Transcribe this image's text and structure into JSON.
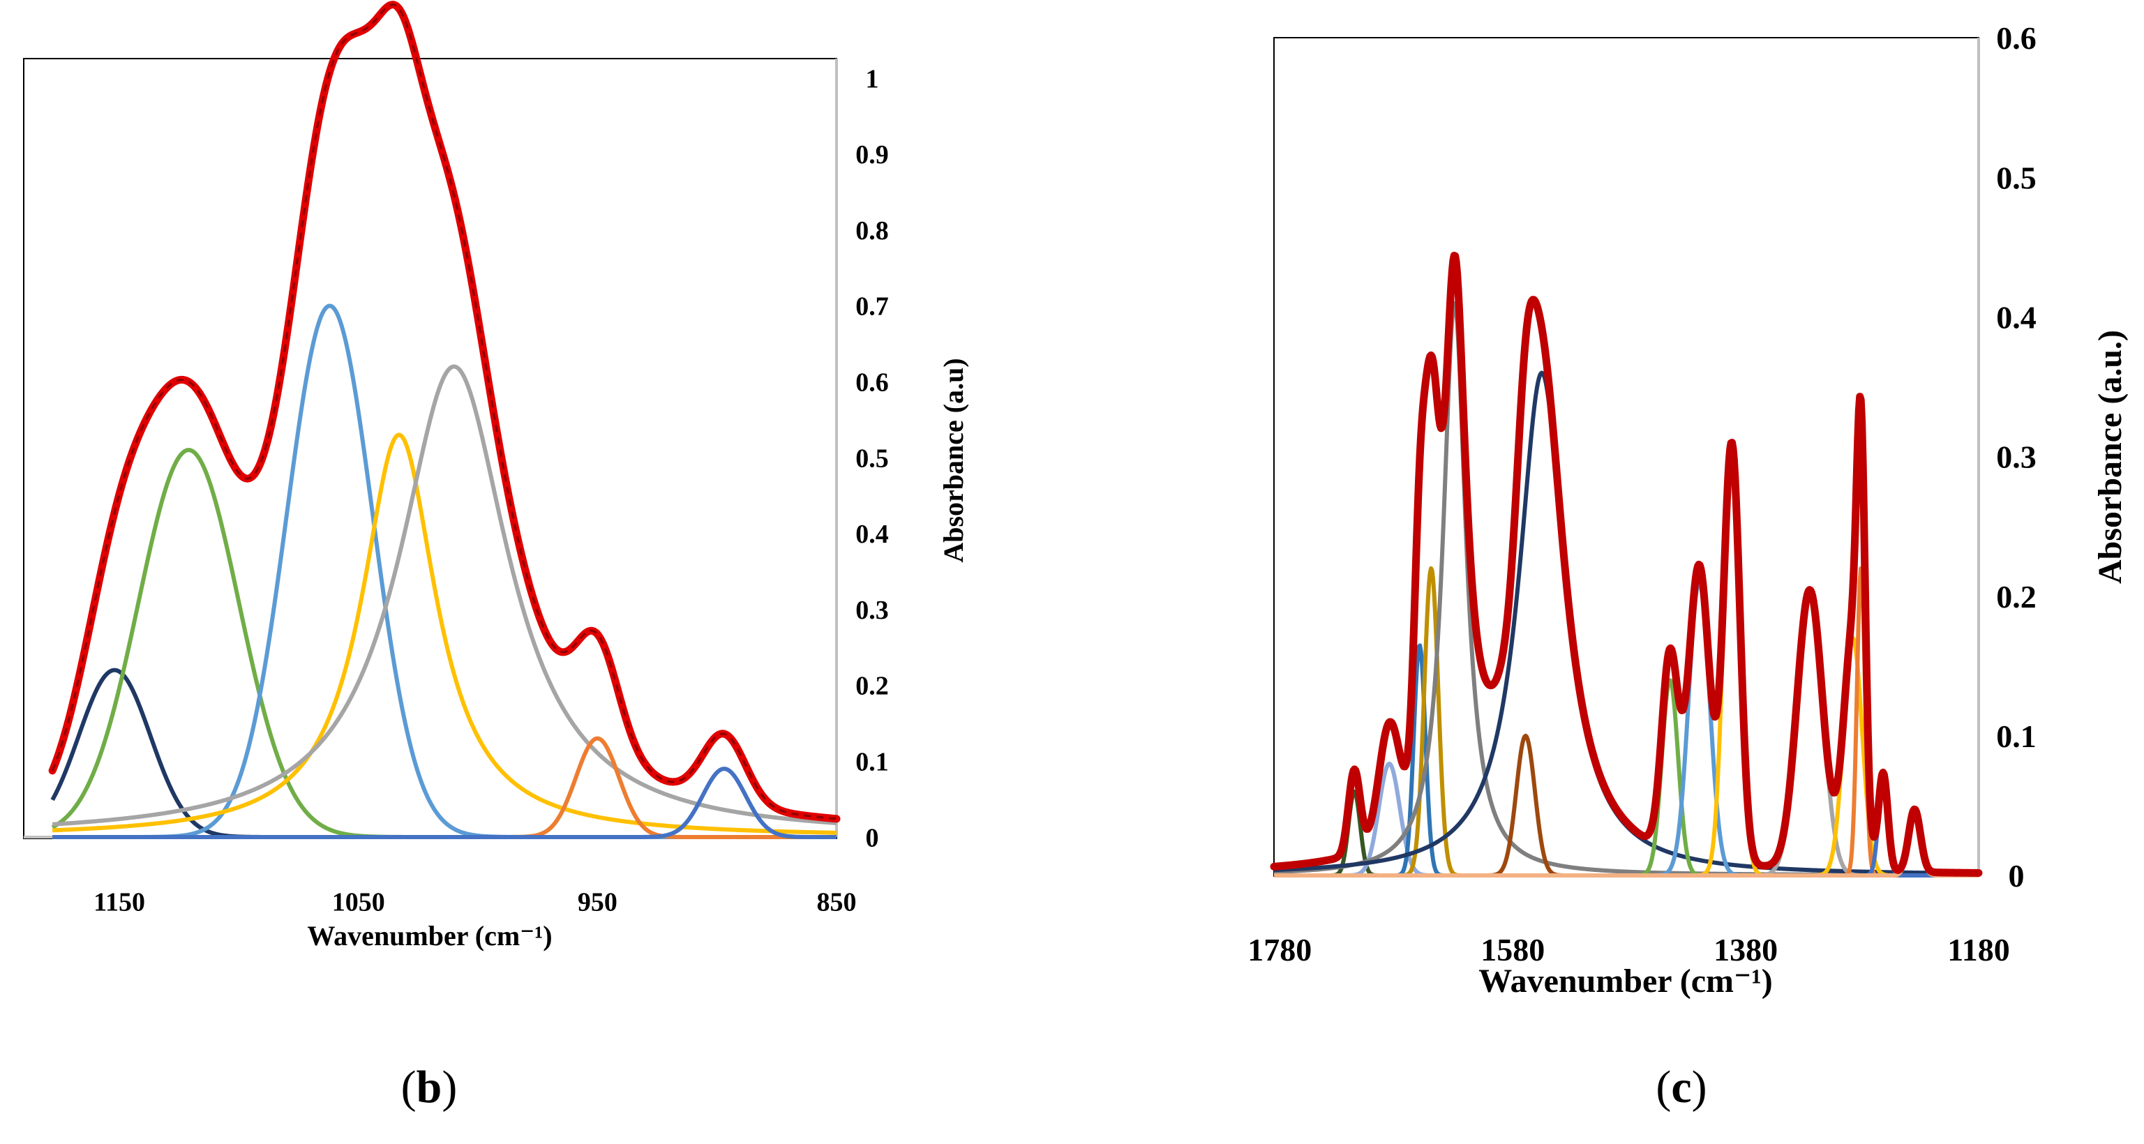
{
  "chart_data": [
    {
      "type": "line",
      "panel_label_open": "(",
      "panel_label_letter": "b",
      "panel_label_close": ")",
      "xlabel": "Wavenumber (cm⁻¹)",
      "ylabel": "Absorbance (a.u)",
      "xlim": [
        1190,
        850
      ],
      "ylim": [
        0,
        1
      ],
      "x_ticks": [
        1150,
        1050,
        950,
        850
      ],
      "x_tick_labels": [
        "1150",
        "1050",
        "950",
        "850"
      ],
      "y_ticks": [
        0,
        0.1,
        0.2,
        0.3,
        0.4,
        0.5,
        0.6,
        0.7,
        0.8,
        0.9,
        1
      ],
      "y_tick_labels": [
        "0",
        "0.1",
        "0.2",
        "0.3",
        "0.4",
        "0.5",
        "0.6",
        "0.7",
        "0.8",
        "0.9",
        "1"
      ],
      "y_axis_side": "right",
      "x_range_plot": [
        1178,
        850
      ],
      "series": [
        {
          "name": "band 1152 (navy)",
          "shape": "gaussian",
          "center": 1152,
          "height": 0.22,
          "width": 15,
          "color": "#1f3864"
        },
        {
          "name": "band 1121 (green)",
          "shape": "gaussian",
          "center": 1121,
          "height": 0.51,
          "width": 21,
          "color": "#70ad47"
        },
        {
          "name": "band 1062 (light blue)",
          "shape": "gaussian",
          "center": 1062,
          "height": 0.7,
          "width": 18,
          "color": "#5b9bd5"
        },
        {
          "name": "band 1033 (gold)",
          "shape": "lorentzian",
          "center": 1033,
          "height": 0.53,
          "width": 19,
          "color": "#ffc000"
        },
        {
          "name": "band 1010 (gray)",
          "shape": "lorentzian",
          "center": 1010,
          "height": 0.62,
          "width": 28,
          "color": "#a5a5a5"
        },
        {
          "name": "band 950 (orange)",
          "shape": "gaussian",
          "center": 950,
          "height": 0.13,
          "width": 9,
          "color": "#ed7d31"
        },
        {
          "name": "band 897 (blue)",
          "shape": "gaussian",
          "center": 897,
          "height": 0.09,
          "width": 9,
          "color": "#4472c4"
        },
        {
          "name": "sum (fitted envelope)",
          "shape": "sum",
          "color": "#e00000",
          "dashed": true
        }
      ]
    },
    {
      "type": "line",
      "panel_label_open": "(",
      "panel_label_letter": "c",
      "panel_label_close": ")",
      "xlabel": "Wavenumber (cm⁻¹)",
      "ylabel": "Absorbance (a.u.)",
      "xlim": [
        1785,
        1180
      ],
      "ylim": [
        0,
        0.6
      ],
      "x_ticks": [
        1780,
        1580,
        1380,
        1180
      ],
      "x_tick_labels": [
        "1780",
        "1580",
        "1380",
        "1180"
      ],
      "y_ticks": [
        0,
        0.1,
        0.2,
        0.3,
        0.4,
        0.5,
        0.6
      ],
      "y_tick_labels": [
        "0",
        "0.1",
        "0.2",
        "0.3",
        "0.4",
        "0.5",
        "0.6"
      ],
      "y_axis_side": "right",
      "x_range_plot": [
        1785,
        1180
      ],
      "series": [
        {
          "name": "band 1716 (dark green)",
          "shape": "gaussian",
          "center": 1716,
          "height": 0.06,
          "width": 5,
          "color": "#375623"
        },
        {
          "name": "band 1686 (periwinkle)",
          "shape": "gaussian",
          "center": 1686,
          "height": 0.08,
          "width": 9,
          "color": "#8faadc"
        },
        {
          "name": "band 1660 (steel blue)",
          "shape": "gaussian",
          "center": 1660,
          "height": 0.165,
          "width": 5,
          "color": "#2e75b6"
        },
        {
          "name": "band 1650 (olive gold)",
          "shape": "gaussian",
          "center": 1650,
          "height": 0.22,
          "width": 6,
          "color": "#bf8f00"
        },
        {
          "name": "band 1630 (dark gray)",
          "shape": "lorentzian",
          "center": 1630,
          "height": 0.41,
          "width": 12,
          "color": "#7f7f7f"
        },
        {
          "name": "band 1569 (brown)",
          "shape": "gaussian",
          "center": 1569,
          "height": 0.1,
          "width": 8,
          "color": "#9e480e"
        },
        {
          "name": "band 1555 (navy)",
          "shape": "lorentzian",
          "center": 1555,
          "height": 0.36,
          "width": 24,
          "color": "#203864"
        },
        {
          "name": "band 1445 (green)",
          "shape": "gaussian",
          "center": 1445,
          "height": 0.14,
          "width": 7,
          "color": "#70ad47"
        },
        {
          "name": "band 1420 (light blue)",
          "shape": "gaussian",
          "center": 1420,
          "height": 0.21,
          "width": 9,
          "color": "#5b9bd5"
        },
        {
          "name": "band 1392 (yellow)",
          "shape": "gaussian",
          "center": 1392,
          "height": 0.3,
          "width": 7,
          "color": "#ffc000"
        },
        {
          "name": "band 1325 (gray)",
          "shape": "gaussian",
          "center": 1325,
          "height": 0.2,
          "width": 11,
          "color": "#a5a5a5"
        },
        {
          "name": "band 1288 (yellow)",
          "shape": "gaussian",
          "center": 1288,
          "height": 0.17,
          "width": 8,
          "color": "#ffc000"
        },
        {
          "name": "band 1281 (orange)",
          "shape": "gaussian",
          "center": 1281,
          "height": 0.22,
          "width": 3.5,
          "color": "#ed7d31"
        },
        {
          "name": "band 1262 (blue)",
          "shape": "gaussian",
          "center": 1262,
          "height": 0.07,
          "width": 4,
          "color": "#4472c4"
        },
        {
          "name": "band 1235 (light orange)",
          "shape": "gaussian",
          "center": 1235,
          "height": 0.045,
          "width": 5,
          "color": "#f4b183"
        },
        {
          "name": "sum (fitted envelope)",
          "shape": "sum",
          "color": "#c00000",
          "dashed": false
        }
      ]
    }
  ]
}
